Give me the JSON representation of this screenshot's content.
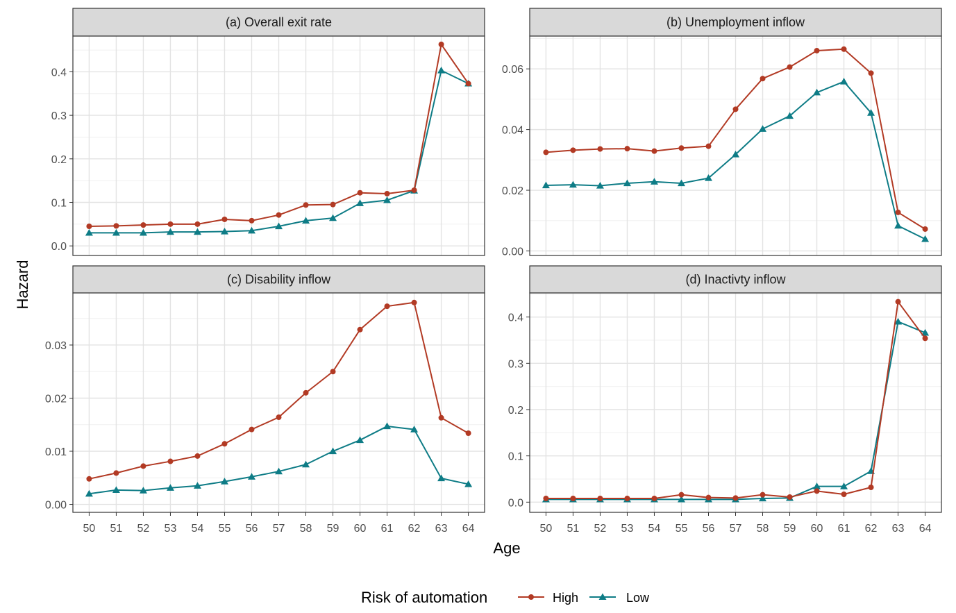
{
  "chart_data": {
    "type": "line",
    "xlabel": "Age",
    "ylabel": "Hazard",
    "legend": {
      "title": "Risk of automation",
      "position": "bottom",
      "entries": [
        {
          "name": "High",
          "color": "#B23A24",
          "marker": "circle"
        },
        {
          "name": "Low",
          "color": "#0E7C86",
          "marker": "triangle"
        }
      ]
    },
    "x": [
      50,
      51,
      52,
      53,
      54,
      55,
      56,
      57,
      58,
      59,
      60,
      61,
      62,
      63,
      64
    ],
    "x_tick_labels": [
      "50",
      "51",
      "52",
      "53",
      "54",
      "55",
      "56",
      "57",
      "58",
      "59",
      "60",
      "61",
      "62",
      "63",
      "64"
    ],
    "panels": [
      {
        "title": "(a) Overall exit rate",
        "ylim": [
          -0.022,
          0.482
        ],
        "y_ticks": [
          0.0,
          0.1,
          0.2,
          0.3,
          0.4
        ],
        "y_tick_labels": [
          "0.0",
          "0.1",
          "0.2",
          "0.3",
          "0.4"
        ],
        "series": [
          {
            "name": "High",
            "values": [
              0.045,
              0.046,
              0.048,
              0.05,
              0.05,
              0.061,
              0.058,
              0.071,
              0.094,
              0.095,
              0.122,
              0.12,
              0.128,
              0.463,
              0.373
            ]
          },
          {
            "name": "Low",
            "values": [
              0.03,
              0.03,
              0.03,
              0.032,
              0.032,
              0.033,
              0.035,
              0.045,
              0.058,
              0.064,
              0.098,
              0.105,
              0.127,
              0.403,
              0.373
            ]
          }
        ]
      },
      {
        "title": "(b) Unemployment inflow",
        "ylim": [
          -0.0015,
          0.0708
        ],
        "y_ticks": [
          0.0,
          0.02,
          0.04,
          0.06
        ],
        "y_tick_labels": [
          "0.00",
          "0.02",
          "0.04",
          "0.06"
        ],
        "series": [
          {
            "name": "High",
            "values": [
              0.0325,
              0.0332,
              0.0336,
              0.0337,
              0.0329,
              0.0339,
              0.0345,
              0.0467,
              0.0568,
              0.0606,
              0.066,
              0.0665,
              0.0586,
              0.0127,
              0.0072
            ]
          },
          {
            "name": "Low",
            "values": [
              0.0216,
              0.0218,
              0.0215,
              0.0223,
              0.0228,
              0.0223,
              0.024,
              0.0318,
              0.0402,
              0.0445,
              0.0522,
              0.0558,
              0.0455,
              0.0083,
              0.0039
            ]
          }
        ]
      },
      {
        "title": "(c) Disability inflow",
        "ylim": [
          -0.0015,
          0.0398
        ],
        "y_ticks": [
          0.0,
          0.01,
          0.02,
          0.03
        ],
        "y_tick_labels": [
          "0.00",
          "0.01",
          "0.02",
          "0.03"
        ],
        "series": [
          {
            "name": "High",
            "values": [
              0.0048,
              0.0059,
              0.0072,
              0.0081,
              0.0091,
              0.0114,
              0.0141,
              0.0164,
              0.021,
              0.025,
              0.0329,
              0.0373,
              0.038,
              0.0163,
              0.0134
            ]
          },
          {
            "name": "Low",
            "values": [
              0.002,
              0.0027,
              0.0026,
              0.0031,
              0.0035,
              0.0043,
              0.0052,
              0.0062,
              0.0075,
              0.01,
              0.0121,
              0.0147,
              0.0141,
              0.0049,
              0.0038
            ]
          }
        ]
      },
      {
        "title": "(d) Inactivty inflow",
        "ylim": [
          -0.022,
          0.452
        ],
        "y_ticks": [
          0.0,
          0.1,
          0.2,
          0.3,
          0.4
        ],
        "y_tick_labels": [
          "0.0",
          "0.1",
          "0.2",
          "0.3",
          "0.4"
        ],
        "series": [
          {
            "name": "High",
            "values": [
              0.008,
              0.008,
              0.008,
              0.008,
              0.008,
              0.016,
              0.01,
              0.009,
              0.016,
              0.011,
              0.024,
              0.017,
              0.032,
              0.433,
              0.354
            ]
          },
          {
            "name": "Low",
            "values": [
              0.006,
              0.006,
              0.006,
              0.006,
              0.006,
              0.006,
              0.006,
              0.006,
              0.008,
              0.009,
              0.034,
              0.034,
              0.067,
              0.39,
              0.366
            ]
          }
        ]
      }
    ]
  }
}
